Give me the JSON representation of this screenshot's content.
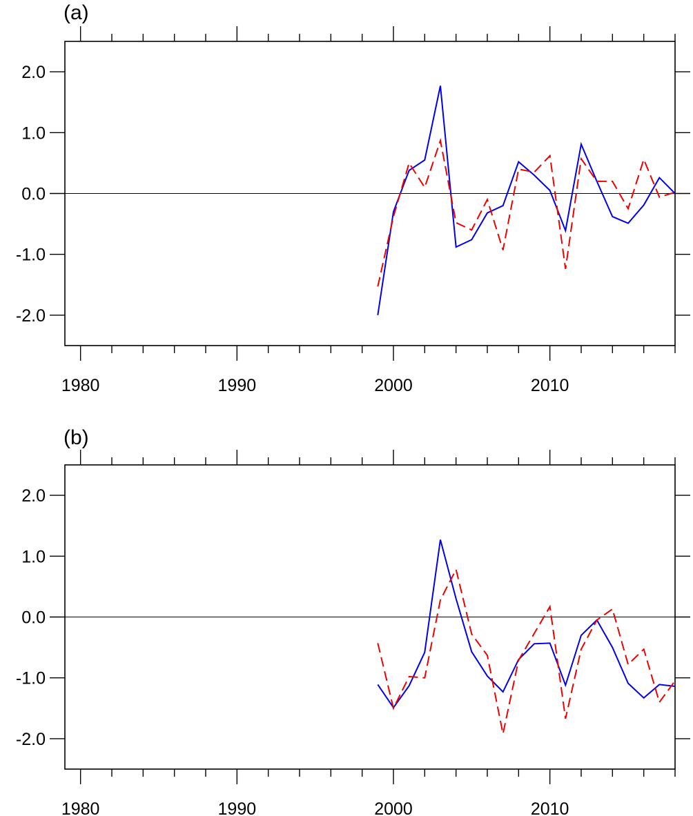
{
  "chart_data": [
    {
      "type": "line",
      "panel_label": "(a)",
      "title": "",
      "xlabel": "",
      "ylabel": "",
      "xlim": [
        1979,
        2018
      ],
      "ylim": [
        -2.5,
        2.5
      ],
      "x_ticks": [
        1980,
        1990,
        2000,
        2010
      ],
      "x_tick_labels": [
        "1980",
        "1990",
        "2000",
        "2010"
      ],
      "y_ticks": [
        -2,
        -1,
        0,
        1,
        2
      ],
      "y_tick_labels": [
        "-2.0",
        "-1.0",
        "0.0",
        "1.0",
        "2.0"
      ],
      "zero_line": true,
      "grid": false,
      "colors": {
        "solid": "#0000ee",
        "dashed": "#ee0000"
      },
      "x": [
        1999,
        2000,
        2001,
        2002,
        2003,
        2004,
        2005,
        2006,
        2007,
        2008,
        2009,
        2010,
        2011,
        2012,
        2013,
        2014,
        2015,
        2016,
        2017,
        2018
      ],
      "series": [
        {
          "style": "solid",
          "color": "#0000ee",
          "values": [
            -2.0,
            -0.3,
            0.38,
            0.55,
            1.77,
            -0.88,
            -0.76,
            -0.32,
            -0.2,
            0.52,
            0.3,
            0.05,
            -0.61,
            0.81,
            0.2,
            -0.38,
            -0.49,
            -0.19,
            0.26,
            0.0
          ]
        },
        {
          "style": "dashed",
          "color": "#ee0000",
          "values": [
            -1.53,
            -0.38,
            0.5,
            0.1,
            0.87,
            -0.48,
            -0.6,
            -0.1,
            -0.93,
            0.4,
            0.35,
            0.62,
            -1.24,
            0.57,
            0.2,
            0.2,
            -0.25,
            0.56,
            -0.06,
            0.02
          ]
        }
      ]
    },
    {
      "type": "line",
      "panel_label": "(b)",
      "title": "",
      "xlabel": "",
      "ylabel": "",
      "xlim": [
        1979,
        2018
      ],
      "ylim": [
        -2.5,
        2.5
      ],
      "x_ticks": [
        1980,
        1990,
        2000,
        2010
      ],
      "x_tick_labels": [
        "1980",
        "1990",
        "2000",
        "2010"
      ],
      "y_ticks": [
        -2,
        -1,
        0,
        1,
        2
      ],
      "y_tick_labels": [
        "-2.0",
        "-1.0",
        "0.0",
        "1.0",
        "2.0"
      ],
      "zero_line": true,
      "grid": false,
      "colors": {
        "solid": "#0000ee",
        "dashed": "#ee0000"
      },
      "x": [
        1999,
        2000,
        2001,
        2002,
        2003,
        2004,
        2005,
        2006,
        2007,
        2008,
        2009,
        2010,
        2011,
        2012,
        2013,
        2014,
        2015,
        2016,
        2017,
        2018
      ],
      "series": [
        {
          "style": "solid",
          "color": "#0000ee",
          "values": [
            -1.11,
            -1.49,
            -1.13,
            -0.58,
            1.27,
            0.3,
            -0.57,
            -0.97,
            -1.23,
            -0.7,
            -0.44,
            -0.43,
            -1.12,
            -0.3,
            -0.05,
            -0.5,
            -1.09,
            -1.33,
            -1.11,
            -1.14
          ]
        },
        {
          "style": "dashed",
          "color": "#ee0000",
          "values": [
            -0.43,
            -1.5,
            -0.98,
            -1.0,
            0.28,
            0.78,
            -0.28,
            -0.63,
            -1.92,
            -0.71,
            -0.27,
            0.17,
            -1.67,
            -0.53,
            -0.05,
            0.13,
            -0.78,
            -0.53,
            -1.4,
            -1.05
          ]
        }
      ]
    }
  ]
}
